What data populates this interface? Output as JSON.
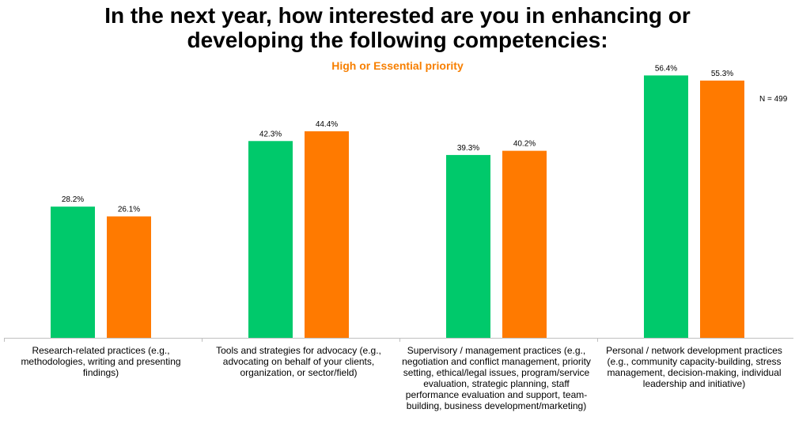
{
  "title_line1": "In the next year, how interested are you in enhancing or",
  "title_line2": "developing the following competencies:",
  "subtitle": "High or Essential priority",
  "n_label": "N = 499",
  "colors": {
    "series1": "#00c96b",
    "series2": "#ff7a00",
    "subtitle": "#f77f00"
  },
  "chart_data": {
    "type": "bar",
    "title": "In the next year, how interested are you in enhancing or developing the following competencies:",
    "subtitle": "High or Essential priority",
    "categories": [
      "Research-related practices (e.g., methodologies, writing and presenting findings)",
      "Tools and strategies for advocacy (e.g., advocating on behalf of your clients, organization, or sector/field)",
      "Supervisory / management practices (e.g., negotiation and conflict management, priority setting, ethical/legal issues, program/service evaluation, strategic planning, staff performance evaluation and support, team-building, business development/marketing)",
      "Personal / network development practices (e.g., community capacity-building, stress management, decision-making, individual leadership and initiative)"
    ],
    "series": [
      {
        "values": [
          28.2,
          42.3,
          39.3,
          56.4
        ],
        "color": "#00c96b"
      },
      {
        "values": [
          26.1,
          44.4,
          40.2,
          55.3
        ],
        "color": "#ff7a00"
      }
    ],
    "data_labels": [
      [
        "28.2%",
        "42.3%",
        "39.3%",
        "56.4%"
      ],
      [
        "26.1%",
        "44.4%",
        "40.2%",
        "55.3%"
      ]
    ],
    "ylim": [
      0,
      60
    ],
    "grid": false,
    "legend": "none"
  }
}
